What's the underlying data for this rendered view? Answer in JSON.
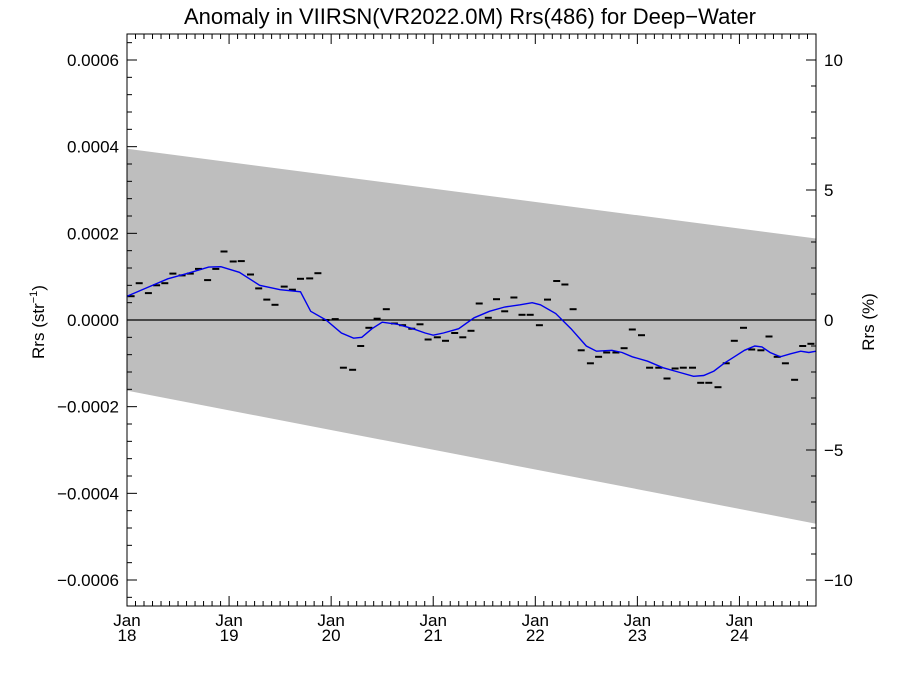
{
  "chart_data": {
    "type": "line",
    "title": "Anomaly in VIIRSN(VR2022.0M) Rrs(486) for Deep−Water",
    "ylabel_left": {
      "base": "Rrs (str",
      "sup": "−1",
      "close": ")"
    },
    "ylabel_right": "Rrs (%)",
    "xlabel": "",
    "xlim": [
      2018.0,
      2024.75
    ],
    "ylim": [
      -0.00066,
      0.00066
    ],
    "ylim_right": [
      -11,
      11
    ],
    "grid": false,
    "legend": "none",
    "x_ticks": [
      {
        "value": 2018,
        "line1": "Jan",
        "line2": "18"
      },
      {
        "value": 2019,
        "line1": "Jan",
        "line2": "19"
      },
      {
        "value": 2020,
        "line1": "Jan",
        "line2": "20"
      },
      {
        "value": 2021,
        "line1": "Jan",
        "line2": "21"
      },
      {
        "value": 2022,
        "line1": "Jan",
        "line2": "22"
      },
      {
        "value": 2023,
        "line1": "Jan",
        "line2": "23"
      },
      {
        "value": 2024,
        "line1": "Jan",
        "line2": "24"
      }
    ],
    "y_ticks_left": [
      {
        "value": 0.0006,
        "label": "0.0006"
      },
      {
        "value": 0.0004,
        "label": "0.0004"
      },
      {
        "value": 0.0002,
        "label": "0.0002"
      },
      {
        "value": 0.0,
        "label": "0.0000"
      },
      {
        "value": -0.0002,
        "label": "−0.0002"
      },
      {
        "value": -0.0004,
        "label": "−0.0004"
      },
      {
        "value": -0.0006,
        "label": "−0.0006"
      }
    ],
    "y_ticks_right": [
      {
        "value": 10,
        "label": "10"
      },
      {
        "value": 5,
        "label": "5"
      },
      {
        "value": 0,
        "label": "0"
      },
      {
        "value": -5,
        "label": "−5"
      },
      {
        "value": -10,
        "label": "−10"
      }
    ],
    "band": {
      "color": "#bebebe",
      "upper": [
        [
          2018.0,
          0.000395
        ],
        [
          2024.75,
          0.000188
        ]
      ],
      "lower": [
        [
          2018.0,
          -0.000163
        ],
        [
          2024.75,
          -0.00047
        ]
      ]
    },
    "reference_line": {
      "y": 0.0,
      "color": "#000000"
    },
    "monthly_anomalies": {
      "color": "#000000",
      "points": [
        [
          2018.04,
          5.5e-05
        ],
        [
          2018.12,
          8.5e-05
        ],
        [
          2018.21,
          6.2e-05
        ],
        [
          2018.29,
          8e-05
        ],
        [
          2018.37,
          8.5e-05
        ],
        [
          2018.45,
          0.000107
        ],
        [
          2018.54,
          0.000103
        ],
        [
          2018.62,
          0.000107
        ],
        [
          2018.7,
          0.000118
        ],
        [
          2018.79,
          9.2e-05
        ],
        [
          2018.87,
          0.000118
        ],
        [
          2018.95,
          0.000158
        ],
        [
          2019.04,
          0.000135
        ],
        [
          2019.12,
          0.000136
        ],
        [
          2019.21,
          0.000105
        ],
        [
          2019.29,
          7.3e-05
        ],
        [
          2019.37,
          4.7e-05
        ],
        [
          2019.45,
          3.5e-05
        ],
        [
          2019.54,
          7.7e-05
        ],
        [
          2019.62,
          7e-05
        ],
        [
          2019.7,
          9.5e-05
        ],
        [
          2019.79,
          9.6e-05
        ],
        [
          2019.87,
          0.000108
        ],
        [
          2019.95,
          0.0
        ],
        [
          2020.04,
          2e-06
        ],
        [
          2020.12,
          -0.00011
        ],
        [
          2020.21,
          -0.000115
        ],
        [
          2020.29,
          -6e-05
        ],
        [
          2020.37,
          -1.8e-05
        ],
        [
          2020.45,
          3e-06
        ],
        [
          2020.54,
          2.5e-05
        ],
        [
          2020.62,
          -8e-06
        ],
        [
          2020.7,
          -1.2e-05
        ],
        [
          2020.79,
          -2e-05
        ],
        [
          2020.87,
          -1e-05
        ],
        [
          2020.95,
          -4.5e-05
        ],
        [
          2021.04,
          -4e-05
        ],
        [
          2021.12,
          -4.8e-05
        ],
        [
          2021.21,
          -3e-05
        ],
        [
          2021.29,
          -4e-05
        ],
        [
          2021.37,
          -2.5e-05
        ],
        [
          2021.45,
          3.8e-05
        ],
        [
          2021.54,
          5e-06
        ],
        [
          2021.62,
          4.8e-05
        ],
        [
          2021.7,
          2e-05
        ],
        [
          2021.79,
          5.2e-05
        ],
        [
          2021.87,
          1.2e-05
        ],
        [
          2021.95,
          1.2e-05
        ],
        [
          2022.04,
          -1.2e-05
        ],
        [
          2022.12,
          4.7e-05
        ],
        [
          2022.21,
          9e-05
        ],
        [
          2022.29,
          8.2e-05
        ],
        [
          2022.37,
          2.5e-05
        ],
        [
          2022.45,
          -7e-05
        ],
        [
          2022.54,
          -0.0001
        ],
        [
          2022.62,
          -8.5e-05
        ],
        [
          2022.7,
          -7.5e-05
        ],
        [
          2022.79,
          -7.5e-05
        ],
        [
          2022.87,
          -6.5e-05
        ],
        [
          2022.95,
          -2.2e-05
        ],
        [
          2023.04,
          -3.5e-05
        ],
        [
          2023.12,
          -0.00011
        ],
        [
          2023.21,
          -0.00011
        ],
        [
          2023.29,
          -0.000135
        ],
        [
          2023.37,
          -0.000112
        ],
        [
          2023.45,
          -0.00011
        ],
        [
          2023.54,
          -0.00011
        ],
        [
          2023.62,
          -0.000145
        ],
        [
          2023.7,
          -0.000145
        ],
        [
          2023.79,
          -0.000155
        ],
        [
          2023.87,
          -0.0001
        ],
        [
          2023.95,
          -4.8e-05
        ],
        [
          2024.04,
          -1.8e-05
        ],
        [
          2024.12,
          -6.8e-05
        ],
        [
          2024.21,
          -7e-05
        ],
        [
          2024.29,
          -3.8e-05
        ],
        [
          2024.37,
          -8.5e-05
        ],
        [
          2024.45,
          -0.0001
        ],
        [
          2024.54,
          -0.000138
        ],
        [
          2024.62,
          -6e-05
        ],
        [
          2024.7,
          -5.5e-05
        ]
      ]
    },
    "smoothed_series": {
      "color": "#0000ee",
      "points": [
        [
          2018.0,
          5.5e-05
        ],
        [
          2018.2,
          7.5e-05
        ],
        [
          2018.4,
          9.5e-05
        ],
        [
          2018.6,
          0.000108
        ],
        [
          2018.8,
          0.000122
        ],
        [
          2018.92,
          0.000123
        ],
        [
          2019.1,
          0.00011
        ],
        [
          2019.3,
          8e-05
        ],
        [
          2019.5,
          7e-05
        ],
        [
          2019.7,
          6.5e-05
        ],
        [
          2019.8,
          2e-05
        ],
        [
          2019.95,
          0.0
        ],
        [
          2020.1,
          -3e-05
        ],
        [
          2020.22,
          -4.2e-05
        ],
        [
          2020.3,
          -4e-05
        ],
        [
          2020.4,
          -2e-05
        ],
        [
          2020.5,
          -5e-06
        ],
        [
          2020.65,
          -1e-05
        ],
        [
          2020.8,
          -2e-05
        ],
        [
          2020.92,
          -3e-05
        ],
        [
          2021.0,
          -3.5e-05
        ],
        [
          2021.1,
          -3e-05
        ],
        [
          2021.25,
          -2e-05
        ],
        [
          2021.4,
          5e-06
        ],
        [
          2021.55,
          2e-05
        ],
        [
          2021.7,
          3e-05
        ],
        [
          2021.85,
          3.5e-05
        ],
        [
          2021.97,
          4e-05
        ],
        [
          2022.05,
          3.5e-05
        ],
        [
          2022.2,
          1.5e-05
        ],
        [
          2022.35,
          -2e-05
        ],
        [
          2022.5,
          -6e-05
        ],
        [
          2022.6,
          -7.2e-05
        ],
        [
          2022.75,
          -7e-05
        ],
        [
          2022.85,
          -7.5e-05
        ],
        [
          2022.95,
          -8.5e-05
        ],
        [
          2023.1,
          -9.5e-05
        ],
        [
          2023.25,
          -0.00011
        ],
        [
          2023.4,
          -0.00012
        ],
        [
          2023.55,
          -0.00013
        ],
        [
          2023.65,
          -0.000128
        ],
        [
          2023.75,
          -0.000118
        ],
        [
          2023.85,
          -0.0001
        ],
        [
          2023.95,
          -8.5e-05
        ],
        [
          2024.05,
          -7e-05
        ],
        [
          2024.15,
          -6e-05
        ],
        [
          2024.22,
          -6.2e-05
        ],
        [
          2024.3,
          -7.5e-05
        ],
        [
          2024.4,
          -8.5e-05
        ],
        [
          2024.5,
          -7.8e-05
        ],
        [
          2024.6,
          -7.2e-05
        ],
        [
          2024.68,
          -7.5e-05
        ],
        [
          2024.75,
          -7.2e-05
        ]
      ]
    }
  }
}
